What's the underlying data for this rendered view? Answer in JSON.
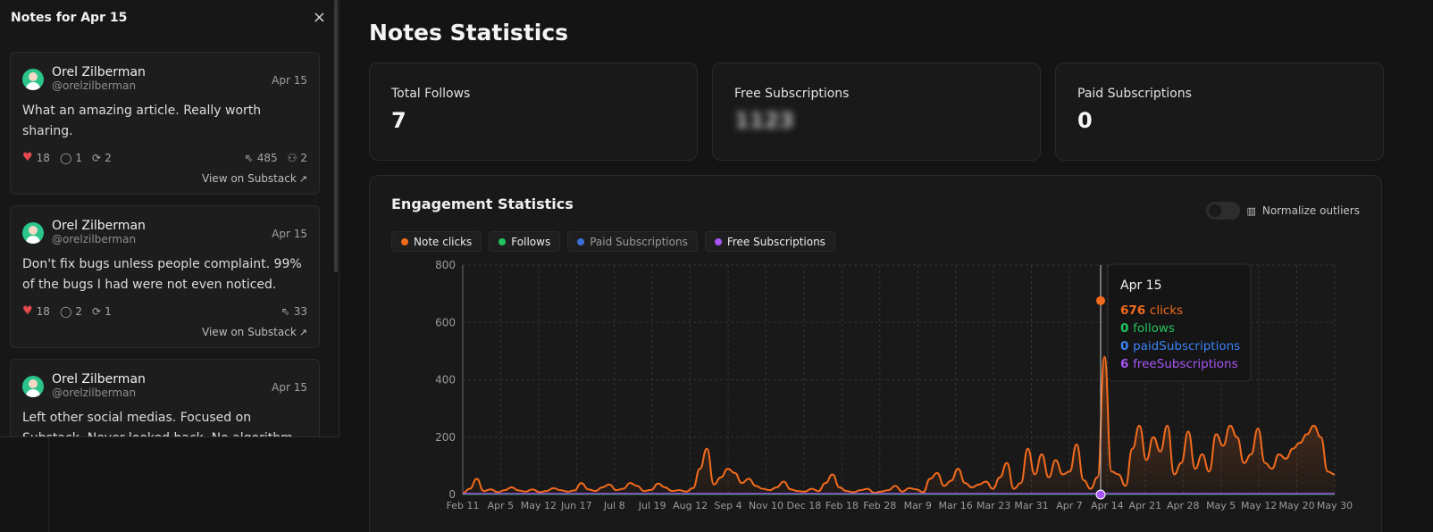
{
  "panel": {
    "title": "Notes for Apr 15",
    "close_glyph": "×",
    "notes": [
      {
        "name": "Orel Zilberman",
        "handle": "@orelzilberman",
        "date": "Apr 15",
        "text": "What an amazing article. Really worth sharing.",
        "likes": "18",
        "comments": "1",
        "restacks": "2",
        "clicks": "485",
        "follows": "2",
        "link": "View on Substack"
      },
      {
        "name": "Orel Zilberman",
        "handle": "@orelzilberman",
        "date": "Apr 15",
        "text": "Don't fix bugs unless people complaint. 99% of the bugs I had were not even noticed.",
        "likes": "18",
        "comments": "2",
        "restacks": "1",
        "clicks": "33",
        "link": "View on Substack"
      },
      {
        "name": "Orel Zilberman",
        "handle": "@orelzilberman",
        "date": "Apr 15",
        "text": "Left other social medias. Focused on Substack. Never looked back. No algorithm decides who"
      }
    ]
  },
  "main": {
    "title": "Notes Statistics",
    "cards": [
      {
        "label": "Total Follows",
        "value": "7"
      },
      {
        "label": "Free Subscriptions",
        "value": "1123"
      },
      {
        "label": "Paid Subscriptions",
        "value": "0"
      }
    ],
    "engagement": {
      "title": "Engagement Statistics",
      "toggle_label": "Normalize outliers",
      "legend": [
        {
          "label": "Note clicks",
          "color": "#f26b1d",
          "active": true
        },
        {
          "label": "Follows",
          "color": "#22c55e",
          "active": true
        },
        {
          "label": "Paid Subscriptions",
          "color": "#3b6fd8",
          "active": false
        },
        {
          "label": "Free Subscriptions",
          "color": "#a855f7",
          "active": true
        }
      ],
      "tooltip": {
        "date": "Apr 15",
        "rows": [
          {
            "value": "676",
            "label": "clicks",
            "color": "#f26b1d"
          },
          {
            "value": "0",
            "label": "follows",
            "color": "#22c55e"
          },
          {
            "value": "0",
            "label": "paidSubscriptions",
            "color": "#3b82f6"
          },
          {
            "value": "6",
            "label": "freeSubscriptions",
            "color": "#a855f7"
          }
        ]
      }
    }
  },
  "chart_data": {
    "type": "area",
    "ylim": [
      0,
      800
    ],
    "yticks": [
      0,
      200,
      400,
      600,
      800
    ],
    "xticks": [
      "Feb 11",
      "Apr 5",
      "May 12",
      "Jun 17",
      "Jul 8",
      "Jul 19",
      "Aug 12",
      "Sep 4",
      "Nov 10",
      "Dec 18",
      "Feb 18",
      "Feb 28",
      "Mar 9",
      "Mar 16",
      "Mar 23",
      "Mar 31",
      "Apr 7",
      "Apr 14",
      "Apr 21",
      "Apr 28",
      "May 5",
      "May 12",
      "May 20",
      "May 30"
    ],
    "series": [
      {
        "name": "Note clicks",
        "color": "#f26b1d",
        "values": [
          5,
          20,
          55,
          12,
          18,
          8,
          15,
          25,
          14,
          10,
          18,
          8,
          12,
          22,
          15,
          10,
          14,
          40,
          18,
          12,
          25,
          35,
          15,
          20,
          40,
          30,
          12,
          16,
          38,
          25,
          12,
          15,
          10,
          22,
          90,
          160,
          35,
          60,
          90,
          75,
          40,
          55,
          30,
          20,
          15,
          25,
          45,
          18,
          12,
          10,
          20,
          12,
          40,
          70,
          25,
          12,
          8,
          15,
          20,
          6,
          10,
          15,
          30,
          10,
          22,
          18,
          8,
          55,
          75,
          30,
          48,
          90,
          40,
          25,
          35,
          45,
          20,
          60,
          110,
          20,
          40,
          160,
          70,
          140,
          60,
          120,
          70,
          80,
          175,
          50,
          20,
          60,
          480,
          80,
          70,
          30,
          160,
          240,
          120,
          200,
          150,
          240,
          70,
          110,
          220,
          90,
          140,
          80,
          210,
          170,
          240,
          200,
          110,
          140,
          230,
          110,
          90,
          140,
          125,
          160,
          180,
          210,
          240,
          200,
          80,
          70
        ]
      },
      {
        "name": "Follows",
        "color": "#22c55e",
        "values": []
      },
      {
        "name": "Paid Subscriptions",
        "color": "#3b6fd8",
        "values": []
      },
      {
        "name": "Free Subscriptions",
        "color": "#a855f7",
        "values": []
      }
    ],
    "highlight": {
      "date": "Apr 15",
      "clicks": 676,
      "free": 6
    }
  }
}
